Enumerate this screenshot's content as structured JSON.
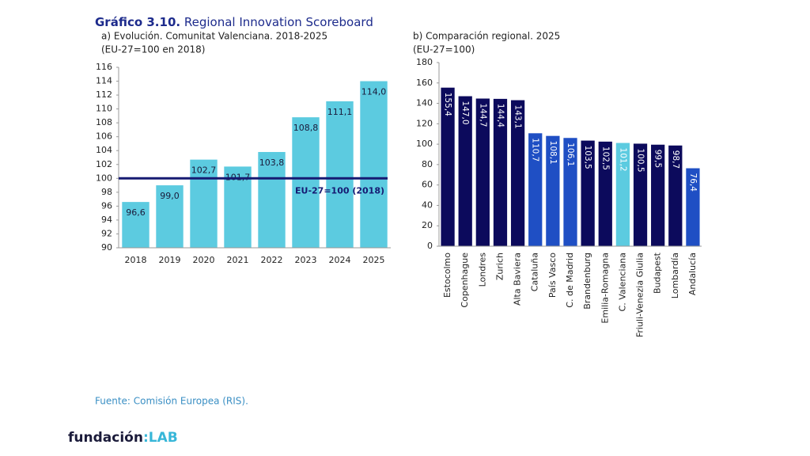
{
  "header": {
    "figure_number": "Gráfico 3.10.",
    "title": "Regional Innovation Scoreboard"
  },
  "chart_data": [
    {
      "type": "bar",
      "title": "a) Evolución. Comunitat Valenciana. 2018-2025",
      "subtitle": "(EU-27=100 en 2018)",
      "categories": [
        "2018",
        "2019",
        "2020",
        "2021",
        "2022",
        "2023",
        "2024",
        "2025"
      ],
      "values": [
        96.6,
        99.0,
        102.7,
        101.7,
        103.8,
        108.8,
        111.1,
        114.0
      ],
      "value_labels": [
        "96,6",
        "99,0",
        "102,7",
        "101,7",
        "103,8",
        "108,8",
        "111,1",
        "114,0"
      ],
      "color": "#5ccbe0",
      "ylim": [
        90,
        116
      ],
      "yticks": [
        90,
        92,
        94,
        96,
        98,
        100,
        102,
        104,
        106,
        108,
        110,
        112,
        114,
        116
      ],
      "reference_line": {
        "value": 100,
        "label": "EU-27=100 (2018)",
        "color": "#161a72"
      }
    },
    {
      "type": "bar",
      "title": "b) Comparación regional. 2025",
      "subtitle": "(EU-27=100)",
      "categories": [
        "Estocolmo",
        "Copenhague",
        "Londres",
        "Zurich",
        "Alta Baviera",
        "Cataluña",
        "País Vasco",
        "C. de Madrid",
        "Brandenburg",
        "Emilia-Romagna",
        "C. Valenciana",
        "Friuli-Venezia Giulia",
        "Budapest",
        "Lombardía",
        "Andalucía"
      ],
      "values": [
        155.4,
        147.0,
        144.7,
        144.4,
        143.1,
        110.7,
        108.1,
        106.1,
        103.5,
        102.5,
        101.2,
        100.5,
        99.5,
        98.7,
        76.4
      ],
      "value_labels": [
        "155,4",
        "147,0",
        "144,7",
        "144,4",
        "143,1",
        "110,7",
        "108,1",
        "106,1",
        "103,5",
        "102,5",
        "101,2",
        "100,5",
        "99,5",
        "98,7",
        "76,4"
      ],
      "colors": [
        "#0c0a5c",
        "#0c0a5c",
        "#0c0a5c",
        "#0c0a5c",
        "#0c0a5c",
        "#1f4fc4",
        "#1f4fc4",
        "#1f4fc4",
        "#0c0a5c",
        "#0c0a5c",
        "#5ccbe0",
        "#0c0a5c",
        "#0c0a5c",
        "#0c0a5c",
        "#1f4fc4"
      ],
      "ylim": [
        0,
        180
      ],
      "yticks": [
        0,
        20,
        40,
        60,
        80,
        100,
        120,
        140,
        160,
        180
      ]
    }
  ],
  "source": "Fuente: Comisión Europea (RIS).",
  "logo": {
    "text": "fundación",
    "accent": ":LAB"
  }
}
